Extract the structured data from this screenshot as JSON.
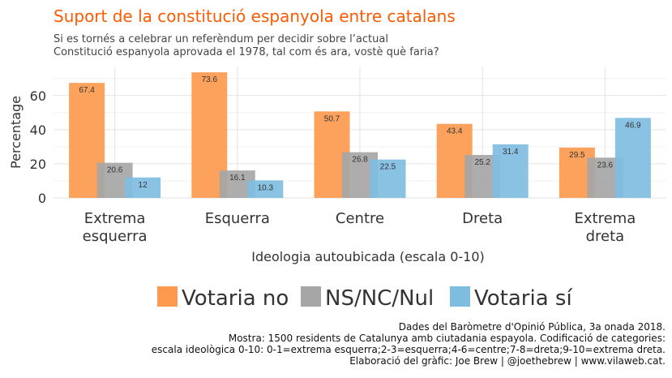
{
  "chart_data": {
    "type": "bar",
    "title": "Suport de la constitució espanyola entre catalans",
    "subtitle": [
      "Si es tornés a celebrar un referèndum per decidir sobre l’actual",
      "Constitució espanyola aprovada el 1978, tal com és ara, vostè què faria?"
    ],
    "xlabel": "Ideologia autoubicada (escala 0-10)",
    "ylabel": "Percentage",
    "ylim": [
      0,
      77
    ],
    "yticks": [
      0,
      20,
      40,
      60
    ],
    "categories": [
      [
        "Extrema",
        "esquerra"
      ],
      [
        "Esquerra"
      ],
      [
        "Centre"
      ],
      [
        "Dreta"
      ],
      [
        "Extrema",
        "dreta"
      ]
    ],
    "series": [
      {
        "name": "Votaria no",
        "color": "#fd9a4f",
        "values": [
          67.4,
          73.6,
          50.7,
          43.4,
          29.5
        ]
      },
      {
        "name": "NS/NC/Nul",
        "color": "#a6a6a6",
        "values": [
          20.6,
          16.1,
          26.8,
          25.2,
          23.6
        ]
      },
      {
        "name": "Votaria sí",
        "color": "#7fbde0",
        "values": [
          12,
          10.3,
          22.5,
          31.4,
          46.9
        ]
      }
    ],
    "legend_position": "bottom",
    "grid": true
  },
  "caption": [
    "Dades del Baròmetre d'Opinió Pública, 3a onada 2018.",
    "Mostra: 1500 residents de Catalunya amb ciutadania espayola. Codificació de categories:",
    "escala ideològica 0-10: 0-1=extrema esquerra;2-3=esquerra;4-6=centre;7-8=dreta;9-10=extrema dreta.",
    "Elaboració del gràfic: Joe Brew | @joethebrew | www.vilaweb.cat."
  ]
}
